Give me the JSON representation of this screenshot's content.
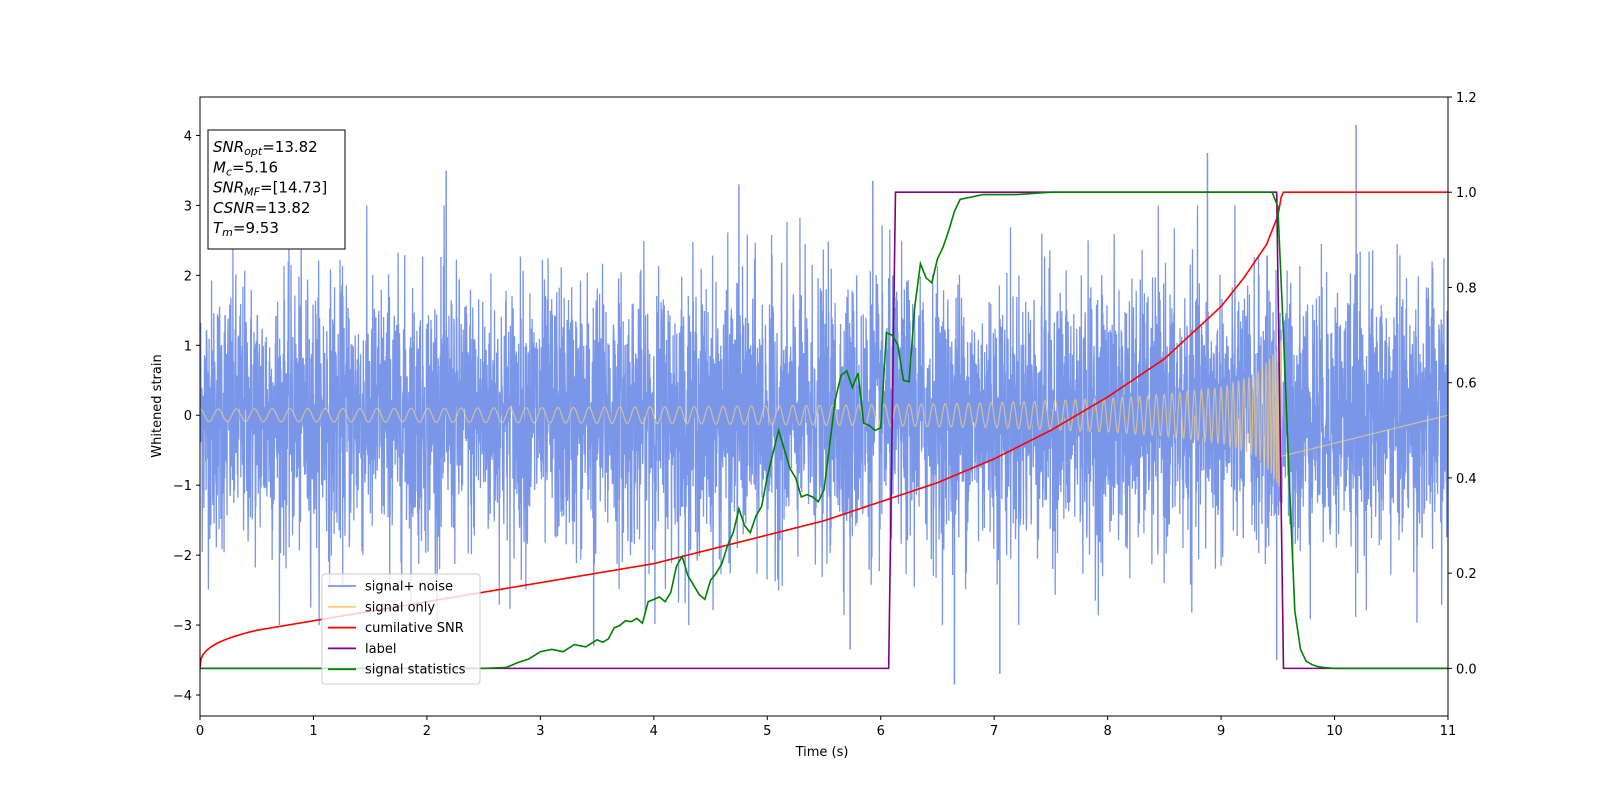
{
  "chart_data": {
    "type": "line",
    "xlabel": "Time (s)",
    "ylabel": "Whitened strain",
    "xlim": [
      0,
      11
    ],
    "ylim": [
      -4.3,
      4.55
    ],
    "y2lim": [
      -0.1,
      1.2
    ],
    "xticks": [
      0,
      1,
      2,
      3,
      4,
      5,
      6,
      7,
      8,
      9,
      10,
      11
    ],
    "yticks": [
      -4,
      -3,
      -2,
      -1,
      0,
      1,
      2,
      3,
      4
    ],
    "y2ticks": [
      "0.0",
      "0.2",
      "0.4",
      "0.6",
      "0.8",
      "1.0",
      "1.2"
    ],
    "colors": {
      "signal_noise": "#7a96e8",
      "signal_only": "#ffd27a",
      "cumulative_snr": "#ff0000",
      "label": "#800080",
      "signal_statistics": "#008000"
    },
    "signal_noise": {
      "amplitude_std": 0.95,
      "x_range": [
        0,
        11
      ],
      "spikes": [
        {
          "x": 2.17,
          "y": 3.5
        },
        {
          "x": 4.75,
          "y": 3.3
        },
        {
          "x": 5.93,
          "y": 3.35
        },
        {
          "x": 8.88,
          "y": 3.75
        },
        {
          "x": 10.19,
          "y": 4.15
        },
        {
          "x": 6.65,
          "y": -3.85
        },
        {
          "x": 7.05,
          "y": -3.7
        },
        {
          "x": 5.73,
          "y": -3.35
        },
        {
          "x": 3.47,
          "y": -3.3
        },
        {
          "x": 9.49,
          "y": -3.5
        }
      ]
    },
    "signal_only": {
      "start": 0,
      "merger": 9.53,
      "envelope": [
        [
          0,
          0.09
        ],
        [
          2,
          0.1
        ],
        [
          4,
          0.12
        ],
        [
          6,
          0.15
        ],
        [
          7,
          0.18
        ],
        [
          8,
          0.24
        ],
        [
          8.5,
          0.3
        ],
        [
          9,
          0.4
        ],
        [
          9.3,
          0.58
        ],
        [
          9.45,
          0.85
        ],
        [
          9.53,
          1.12
        ]
      ]
    },
    "series": [
      {
        "name": "cumilative SNR",
        "axis": "right",
        "x": [
          0,
          0.1,
          0.5,
          1,
          1.5,
          2,
          2.5,
          3,
          3.5,
          4,
          4.5,
          5,
          5.5,
          6,
          6.5,
          7,
          7.5,
          8,
          8.5,
          9,
          9.2,
          9.4,
          9.5,
          9.53,
          9.55,
          11
        ],
        "y": [
          0.0,
          0.04,
          0.08,
          0.1,
          0.12,
          0.14,
          0.16,
          0.18,
          0.2,
          0.22,
          0.25,
          0.28,
          0.31,
          0.35,
          0.39,
          0.44,
          0.5,
          0.57,
          0.65,
          0.76,
          0.82,
          0.89,
          0.95,
          0.99,
          1.0,
          1.0
        ]
      },
      {
        "name": "label",
        "axis": "right",
        "x": [
          0,
          6.07,
          6.13,
          9.49,
          9.55,
          11
        ],
        "y": [
          0,
          0,
          1,
          1,
          0,
          0
        ]
      },
      {
        "name": "signal statistics",
        "axis": "right",
        "x": [
          0,
          2.5,
          2.7,
          2.8,
          2.9,
          3.0,
          3.1,
          3.2,
          3.3,
          3.4,
          3.5,
          3.55,
          3.6,
          3.65,
          3.7,
          3.75,
          3.8,
          3.85,
          3.9,
          3.95,
          4.0,
          4.05,
          4.1,
          4.15,
          4.2,
          4.25,
          4.3,
          4.35,
          4.4,
          4.45,
          4.5,
          4.55,
          4.6,
          4.65,
          4.7,
          4.75,
          4.8,
          4.85,
          4.9,
          4.95,
          5.0,
          5.05,
          5.1,
          5.15,
          5.2,
          5.25,
          5.3,
          5.35,
          5.4,
          5.45,
          5.5,
          5.55,
          5.6,
          5.65,
          5.7,
          5.75,
          5.8,
          5.85,
          5.9,
          5.95,
          6.0,
          6.05,
          6.1,
          6.15,
          6.2,
          6.25,
          6.3,
          6.35,
          6.4,
          6.45,
          6.5,
          6.55,
          6.6,
          6.65,
          6.7,
          6.8,
          6.9,
          7.0,
          7.2,
          7.5,
          8.0,
          8.5,
          9.0,
          9.3,
          9.45,
          9.5,
          9.55,
          9.6,
          9.65,
          9.7,
          9.75,
          9.8,
          9.85,
          9.9,
          10.0,
          10.5,
          11.0
        ],
        "y": [
          0,
          0.0,
          0.002,
          0.012,
          0.02,
          0.035,
          0.04,
          0.035,
          0.05,
          0.045,
          0.06,
          0.055,
          0.062,
          0.085,
          0.09,
          0.1,
          0.098,
          0.105,
          0.095,
          0.14,
          0.145,
          0.15,
          0.14,
          0.16,
          0.215,
          0.235,
          0.195,
          0.175,
          0.155,
          0.145,
          0.185,
          0.2,
          0.22,
          0.258,
          0.285,
          0.335,
          0.3,
          0.285,
          0.32,
          0.34,
          0.402,
          0.452,
          0.5,
          0.46,
          0.42,
          0.4,
          0.36,
          0.365,
          0.36,
          0.35,
          0.375,
          0.47,
          0.565,
          0.615,
          0.625,
          0.59,
          0.62,
          0.515,
          0.51,
          0.5,
          0.505,
          0.705,
          0.7,
          0.68,
          0.605,
          0.602,
          0.76,
          0.85,
          0.82,
          0.81,
          0.86,
          0.885,
          0.92,
          0.96,
          0.985,
          0.99,
          0.995,
          0.995,
          0.995,
          1.0,
          1.0,
          1.0,
          1.0,
          1.0,
          1.0,
          0.97,
          0.7,
          0.4,
          0.12,
          0.04,
          0.015,
          0.008,
          0.004,
          0.002,
          0.0,
          0.0,
          0.0
        ]
      }
    ],
    "legend": {
      "placement": "lower-left",
      "entries": [
        "signal+ noise",
        "signal only",
        "cumilative SNR",
        "label",
        "signal statistics"
      ]
    },
    "infobox": {
      "placement": "upper-left",
      "lines": [
        {
          "main": "SNR",
          "sub": "opt",
          "value": "=13.82"
        },
        {
          "main": "M",
          "sub": "c",
          "value": "=5.16"
        },
        {
          "main": "SNR",
          "sub": "MF",
          "value": "=[14.73]"
        },
        {
          "main": "CSNR",
          "sub": "",
          "value": "=13.82"
        },
        {
          "main": "T",
          "sub": "m",
          "value": "=9.53"
        }
      ]
    }
  }
}
